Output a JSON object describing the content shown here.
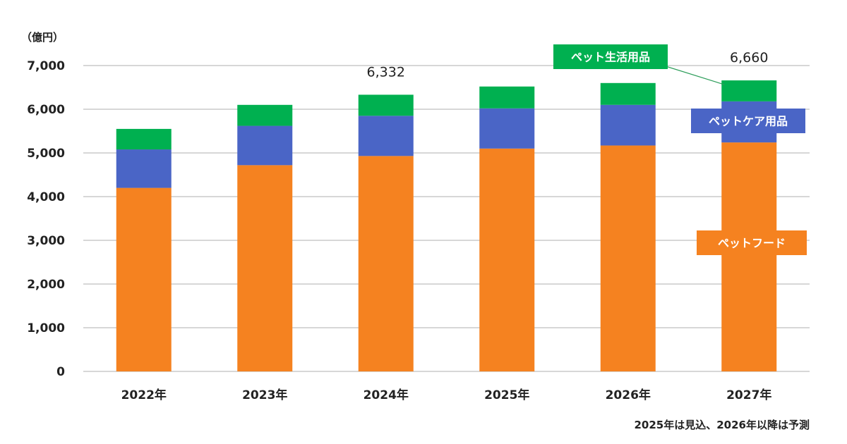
{
  "chart_data": {
    "type": "bar",
    "stacked": true,
    "unit": "（億円）",
    "categories": [
      "2022年",
      "2023年",
      "2024年",
      "2025年",
      "2026年",
      "2027年"
    ],
    "series": [
      {
        "name": "ペットフード",
        "color": "#f58220",
        "values": [
          4200,
          4720,
          4930,
          5100,
          5170,
          5240
        ]
      },
      {
        "name": "ペットケア用品",
        "color": "#4a65c6",
        "values": [
          880,
          900,
          920,
          920,
          930,
          940
        ]
      },
      {
        "name": "ペット生活用品",
        "color": "#00b050",
        "values": [
          470,
          480,
          482,
          500,
          500,
          480
        ]
      }
    ],
    "totals": [
      {
        "index": 2,
        "label": "6,332"
      },
      {
        "index": 5,
        "label": "6,660"
      }
    ],
    "ylim": [
      0,
      7000
    ],
    "yticks": [
      {
        "value": 0,
        "label": "0"
      },
      {
        "value": 1000,
        "label": "1,000"
      },
      {
        "value": 2000,
        "label": "2,000"
      },
      {
        "value": 3000,
        "label": "3,000"
      },
      {
        "value": 4000,
        "label": "4,000"
      },
      {
        "value": 5000,
        "label": "5,000"
      },
      {
        "value": 6000,
        "label": "6,000"
      },
      {
        "value": 7000,
        "label": "7,000"
      }
    ],
    "grid": true,
    "gridline_color": "#bfbfbf",
    "legend_placement": "inline-right",
    "note": "2025年は見込、2026年以降は予測"
  }
}
